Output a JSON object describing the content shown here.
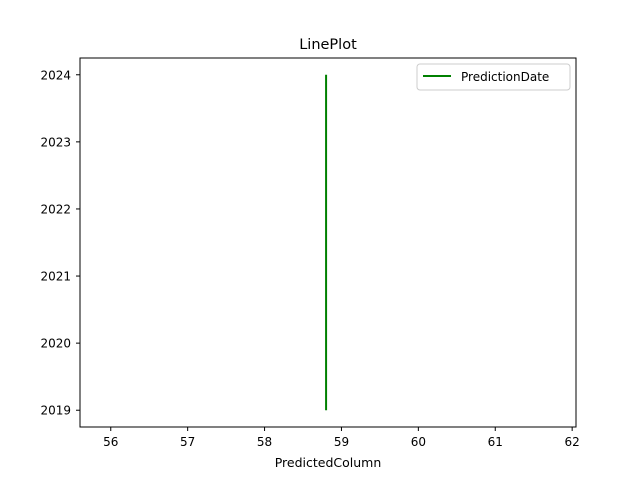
{
  "chart_data": {
    "type": "line",
    "title": "LinePlot",
    "xlabel": "PredictedColumn",
    "ylabel": "",
    "xlim": [
      55.6,
      62.05
    ],
    "ylim": [
      2018.75,
      2024.25
    ],
    "xticks": [
      56,
      57,
      58,
      59,
      60,
      61,
      62
    ],
    "yticks": [
      2019,
      2020,
      2021,
      2022,
      2023,
      2024
    ],
    "grid": false,
    "legend_position": "top-right",
    "series": [
      {
        "name": "PredictionDate",
        "color": "#008000",
        "x": [
          58.8,
          58.8
        ],
        "y": [
          2019,
          2024
        ]
      }
    ]
  }
}
